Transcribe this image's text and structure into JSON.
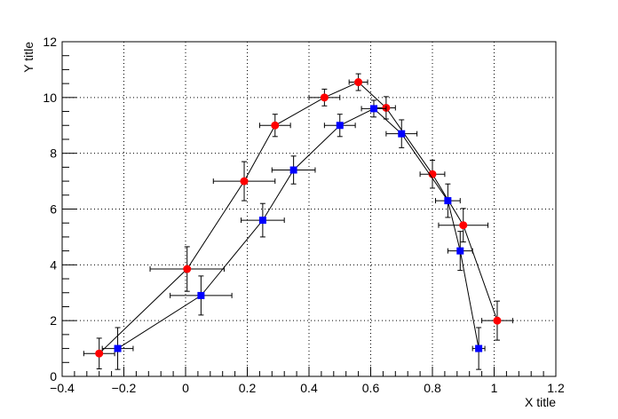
{
  "chart_data": {
    "type": "scatter",
    "title": "",
    "xlabel": "X title",
    "ylabel": "Y title",
    "xlim": [
      -0.4,
      1.2
    ],
    "ylim": [
      0,
      12
    ],
    "x_ticks": [
      "−0.4",
      "−0.2",
      "0",
      "0.2",
      "0.4",
      "0.6",
      "0.8",
      "1",
      "1.2"
    ],
    "x_tick_values": [
      -0.4,
      -0.2,
      0,
      0.2,
      0.4,
      0.6,
      0.8,
      1.0,
      1.2
    ],
    "y_ticks": [
      "0",
      "2",
      "4",
      "6",
      "8",
      "10",
      "12"
    ],
    "y_tick_values": [
      0,
      2,
      4,
      6,
      8,
      10,
      12
    ],
    "grid": true,
    "legend": "none",
    "series": [
      {
        "marker": "circle",
        "color": "#ff0000",
        "connected": true,
        "x": [
          -0.28,
          0.005,
          0.19,
          0.29,
          0.45,
          0.56,
          0.65,
          0.8,
          0.9,
          1.01
        ],
        "y": [
          0.82,
          3.85,
          7.0,
          9.0,
          10.0,
          10.55,
          9.63,
          7.25,
          5.42,
          2.0
        ],
        "ex": [
          0.05,
          0.12,
          0.1,
          0.05,
          0.05,
          0.03,
          0.03,
          0.04,
          0.08,
          0.05
        ],
        "ey": [
          0.55,
          0.8,
          0.7,
          0.4,
          0.3,
          0.3,
          0.4,
          0.5,
          0.6,
          0.7
        ]
      },
      {
        "marker": "square",
        "color": "#0000ff",
        "connected": true,
        "x": [
          -0.22,
          0.05,
          0.25,
          0.35,
          0.5,
          0.61,
          0.7,
          0.85,
          0.89,
          0.95
        ],
        "y": [
          1.0,
          2.9,
          5.6,
          7.4,
          9.0,
          9.6,
          8.7,
          6.3,
          4.5,
          1.0
        ],
        "ex": [
          0.05,
          0.1,
          0.07,
          0.07,
          0.05,
          0.04,
          0.05,
          0.04,
          0.04,
          0.02
        ],
        "ey": [
          0.75,
          0.7,
          0.6,
          0.5,
          0.4,
          0.3,
          0.5,
          0.6,
          0.7,
          0.75
        ]
      }
    ]
  }
}
